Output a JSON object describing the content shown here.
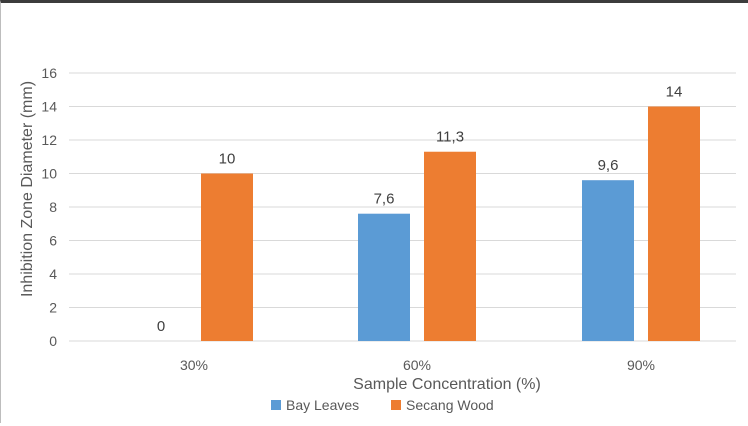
{
  "chart_data": {
    "type": "bar",
    "title": "",
    "xlabel": "Sample Concentration (%)",
    "ylabel": "Inhibition Zone Diameter (mm)",
    "categories": [
      "30%",
      "60%",
      "90%"
    ],
    "series": [
      {
        "name": "Bay Leaves",
        "color": "#5b9bd5",
        "values": [
          0,
          7.6,
          9.6
        ],
        "labels": [
          "0",
          "7,6",
          "9,6"
        ]
      },
      {
        "name": "Secang Wood",
        "color": "#ed7d31",
        "values": [
          10,
          11.3,
          14
        ],
        "labels": [
          "10",
          "11,3",
          "14"
        ]
      }
    ],
    "ylim": [
      0,
      16
    ],
    "yticks": [
      0,
      2,
      4,
      6,
      8,
      10,
      12,
      14,
      16
    ],
    "grid": true,
    "legend_position": "bottom"
  }
}
